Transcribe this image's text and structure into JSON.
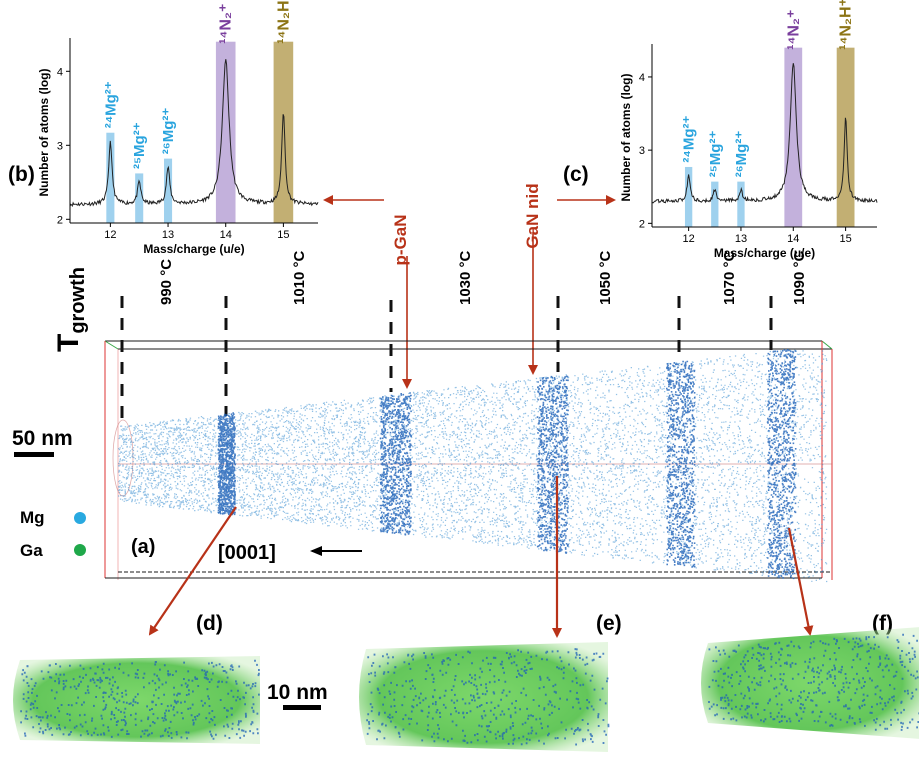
{
  "figure": {
    "panel_labels": {
      "a": "(a)",
      "b": "(b)",
      "c": "(c)",
      "d": "(d)",
      "e": "(e)",
      "f": "(f)"
    },
    "growth_label": "T",
    "growth_sub": "growth",
    "temperatures": [
      "990 °C",
      "1010 °C",
      "1030 °C",
      "1050 °C",
      "1070 °C",
      "1090 °C"
    ],
    "layer_labels": {
      "pgan": "p-GaN",
      "gannid": "GaN nid"
    },
    "scale_50": "50 nm",
    "scale_10": "10 nm",
    "direction": "[0001]",
    "legend": [
      {
        "label": "Mg",
        "color": "#29a9e0"
      },
      {
        "label": "Ga",
        "color": "#1fa84a"
      }
    ],
    "colors": {
      "arrow": "#b83218",
      "mg_point": "#1f62b8",
      "ga_point": "#3fba3f",
      "mg_label": "#29a4de",
      "n2_label": "#7a3f9d",
      "n2h_label": "#8c7415",
      "n2_band": "#b9a3d6",
      "n2h_band": "#b7a15a",
      "mg_band": "#7fc2e8"
    }
  },
  "chart_data": [
    {
      "type": "line",
      "panel": "(b)",
      "xlabel": "Mass/charge (u/e)",
      "ylabel": "Number of atoms (log)",
      "xlim": [
        11.3,
        15.6
      ],
      "ylim": [
        1.95,
        4.45
      ],
      "xticks": [
        12,
        13,
        14,
        15
      ],
      "yticks": [
        2,
        3,
        4
      ],
      "baseline": 2.2,
      "peaks": [
        {
          "label": "²⁴Mg²⁺",
          "x": 12.0,
          "y": 3.05
        },
        {
          "label": "²⁵Mg²⁺",
          "x": 12.5,
          "y": 2.5
        },
        {
          "label": "²⁶Mg²⁺",
          "x": 13.0,
          "y": 2.7
        },
        {
          "label": "¹⁴N₂⁺",
          "x": 14.0,
          "y": 4.15
        },
        {
          "label": "¹⁴N₂H⁺",
          "x": 15.0,
          "y": 3.45
        }
      ],
      "annotations": [
        {
          "text": "24Mg2+",
          "ion": "mg",
          "x": 12.0
        },
        {
          "text": "25Mg2+",
          "ion": "mg",
          "x": 12.5
        },
        {
          "text": "26Mg2+",
          "ion": "mg",
          "x": 13.0
        },
        {
          "text": "14N2+",
          "ion": "n2",
          "x": 14.0
        },
        {
          "text": "14N2H+",
          "ion": "n2h",
          "x": 15.0
        }
      ]
    },
    {
      "type": "line",
      "panel": "(c)",
      "xlabel": "Mass/charge (u/e)",
      "ylabel": "Number of atoms (log)",
      "xlim": [
        11.3,
        15.6
      ],
      "ylim": [
        1.95,
        4.45
      ],
      "xticks": [
        12,
        13,
        14,
        15
      ],
      "yticks": [
        2,
        3,
        4
      ],
      "baseline": 2.3,
      "peaks": [
        {
          "label": "²⁴Mg²⁺",
          "x": 12.0,
          "y": 2.65
        },
        {
          "label": "²⁵Mg²⁺",
          "x": 12.5,
          "y": 2.45
        },
        {
          "label": "²⁶Mg²⁺",
          "x": 13.0,
          "y": 2.45
        },
        {
          "label": "¹⁴N₂⁺",
          "x": 14.0,
          "y": 4.2
        },
        {
          "label": "¹⁴N₂H⁺",
          "x": 15.0,
          "y": 3.45
        }
      ],
      "annotations": [
        {
          "text": "24Mg2+",
          "ion": "mg",
          "x": 12.0
        },
        {
          "text": "25Mg2+",
          "ion": "mg",
          "x": 12.5
        },
        {
          "text": "26Mg2+",
          "ion": "mg",
          "x": 13.0
        },
        {
          "text": "14N2+",
          "ion": "n2",
          "x": 14.0
        },
        {
          "text": "14N2H+",
          "ion": "n2h",
          "x": 15.0
        }
      ]
    }
  ]
}
